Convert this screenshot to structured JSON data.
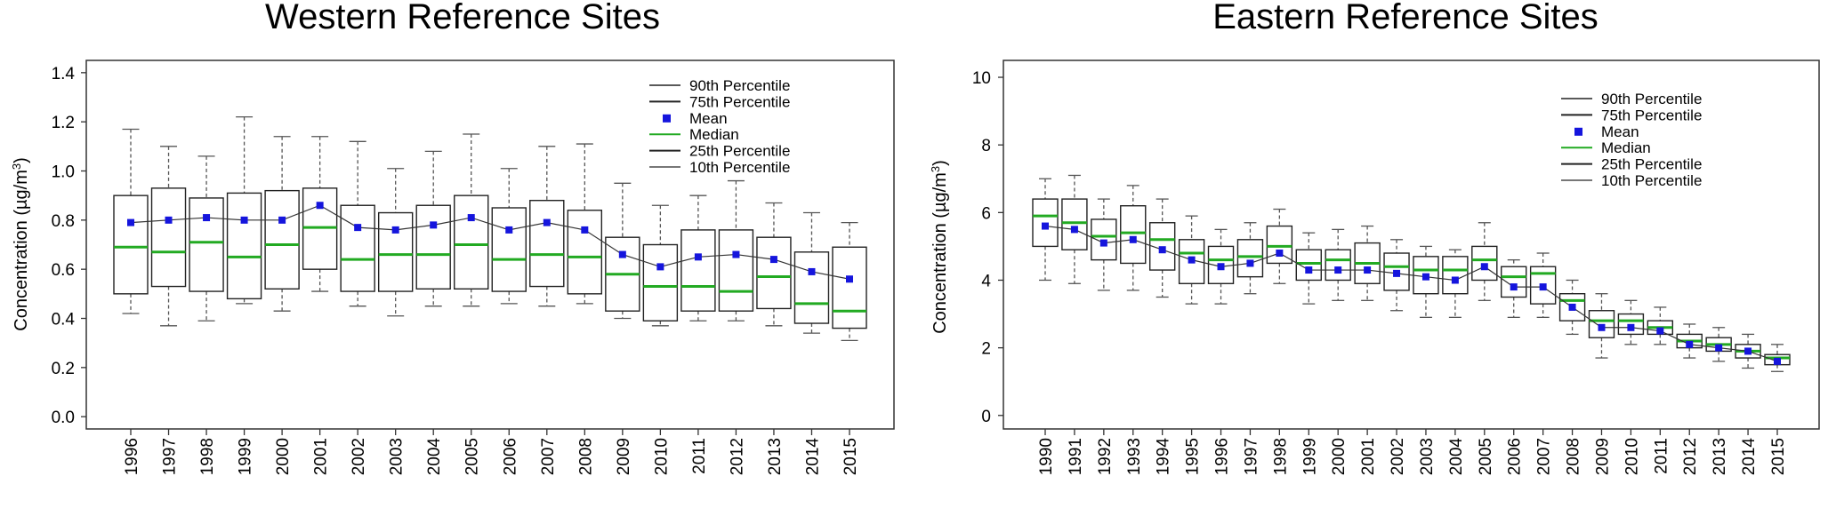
{
  "colors": {
    "box": "#222222",
    "whisker": "#555555",
    "median": "#22aa22",
    "mean": "#1515dd",
    "line": "#333333"
  },
  "chart_data": [
    {
      "type": "box",
      "title": "Western Reference Sites",
      "ylabel": "Concentration (µg/m³)",
      "ylim": [
        -0.05,
        1.45
      ],
      "yticks": [
        0.0,
        0.2,
        0.4,
        0.6,
        0.8,
        1.0,
        1.2,
        1.4
      ],
      "ytick_labels": [
        "0.0",
        "0.2",
        "0.4",
        "0.6",
        "0.8",
        "1.0",
        "1.2",
        "1.4"
      ],
      "legend": [
        "90th Percentile",
        "75th Percentile",
        "Mean",
        "Median",
        "25th Percentile",
        "10th Percentile"
      ],
      "categories": [
        "1996",
        "1997",
        "1998",
        "1999",
        "2000",
        "2001",
        "2002",
        "2003",
        "2004",
        "2005",
        "2006",
        "2007",
        "2008",
        "2009",
        "2010",
        "2011",
        "2012",
        "2013",
        "2014",
        "2015"
      ],
      "p10": [
        0.42,
        0.37,
        0.39,
        0.46,
        0.43,
        0.51,
        0.45,
        0.41,
        0.45,
        0.45,
        0.46,
        0.45,
        0.46,
        0.4,
        0.37,
        0.39,
        0.39,
        0.37,
        0.34,
        0.31
      ],
      "p25": [
        0.5,
        0.53,
        0.51,
        0.48,
        0.52,
        0.6,
        0.51,
        0.51,
        0.52,
        0.52,
        0.51,
        0.53,
        0.5,
        0.43,
        0.39,
        0.43,
        0.43,
        0.44,
        0.38,
        0.36
      ],
      "median": [
        0.69,
        0.67,
        0.71,
        0.65,
        0.7,
        0.77,
        0.64,
        0.66,
        0.66,
        0.7,
        0.64,
        0.66,
        0.65,
        0.58,
        0.53,
        0.53,
        0.51,
        0.57,
        0.46,
        0.43
      ],
      "mean": [
        0.79,
        0.8,
        0.81,
        0.8,
        0.8,
        0.86,
        0.77,
        0.76,
        0.78,
        0.81,
        0.76,
        0.79,
        0.76,
        0.66,
        0.61,
        0.65,
        0.66,
        0.64,
        0.59,
        0.56
      ],
      "p75": [
        0.9,
        0.93,
        0.89,
        0.91,
        0.92,
        0.93,
        0.86,
        0.83,
        0.86,
        0.9,
        0.85,
        0.88,
        0.84,
        0.73,
        0.7,
        0.76,
        0.76,
        0.73,
        0.67,
        0.69
      ],
      "p90": [
        1.17,
        1.1,
        1.06,
        1.22,
        1.14,
        1.14,
        1.12,
        1.01,
        1.08,
        1.15,
        1.01,
        1.1,
        1.11,
        0.95,
        0.86,
        0.9,
        0.96,
        0.87,
        0.83,
        0.79
      ]
    },
    {
      "type": "box",
      "title": "Eastern Reference Sites",
      "ylabel": "Concentration (µg/m³)",
      "ylim": [
        -0.4,
        10.5
      ],
      "yticks": [
        0,
        2,
        4,
        6,
        8,
        10
      ],
      "ytick_labels": [
        "0",
        "2",
        "4",
        "6",
        "8",
        "10"
      ],
      "legend": [
        "90th Percentile",
        "75th Percentile",
        "Mean",
        "Median",
        "25th Percentile",
        "10th Percentile"
      ],
      "categories": [
        "1990",
        "1991",
        "1992",
        "1993",
        "1994",
        "1995",
        "1996",
        "1997",
        "1998",
        "1999",
        "2000",
        "2001",
        "2002",
        "2003",
        "2004",
        "2005",
        "2006",
        "2007",
        "2008",
        "2009",
        "2010",
        "2011",
        "2012",
        "2013",
        "2014",
        "2015"
      ],
      "p10": [
        4.0,
        3.9,
        3.7,
        3.7,
        3.5,
        3.3,
        3.3,
        3.6,
        3.9,
        3.3,
        3.4,
        3.4,
        3.1,
        2.9,
        2.9,
        3.4,
        2.9,
        2.9,
        2.4,
        1.7,
        2.1,
        2.1,
        1.7,
        1.6,
        1.4,
        1.3
      ],
      "p25": [
        5.0,
        4.9,
        4.6,
        4.5,
        4.3,
        3.9,
        3.9,
        4.1,
        4.5,
        4.0,
        4.0,
        3.9,
        3.7,
        3.6,
        3.6,
        4.0,
        3.5,
        3.3,
        2.8,
        2.3,
        2.4,
        2.4,
        2.0,
        1.9,
        1.7,
        1.5
      ],
      "median": [
        5.9,
        5.7,
        5.3,
        5.4,
        5.2,
        4.8,
        4.6,
        4.7,
        5.0,
        4.5,
        4.6,
        4.5,
        4.4,
        4.3,
        4.3,
        4.6,
        4.1,
        4.2,
        3.4,
        2.8,
        2.8,
        2.6,
        2.2,
        2.1,
        1.9,
        1.7
      ],
      "mean": [
        5.6,
        5.5,
        5.1,
        5.2,
        4.9,
        4.6,
        4.4,
        4.5,
        4.8,
        4.3,
        4.3,
        4.3,
        4.2,
        4.1,
        4.0,
        4.4,
        3.8,
        3.8,
        3.2,
        2.6,
        2.6,
        2.5,
        2.1,
        2.0,
        1.9,
        1.6
      ],
      "p75": [
        6.4,
        6.4,
        5.8,
        6.2,
        5.7,
        5.2,
        5.0,
        5.2,
        5.6,
        4.9,
        4.9,
        5.1,
        4.8,
        4.7,
        4.7,
        5.0,
        4.4,
        4.4,
        3.6,
        3.1,
        3.0,
        2.8,
        2.4,
        2.3,
        2.1,
        1.8
      ],
      "p90": [
        7.0,
        7.1,
        6.4,
        6.8,
        6.4,
        5.9,
        5.5,
        5.7,
        6.1,
        5.4,
        5.5,
        5.6,
        5.2,
        5.0,
        4.9,
        5.7,
        4.6,
        4.8,
        4.0,
        3.6,
        3.4,
        3.2,
        2.7,
        2.6,
        2.4,
        2.1
      ]
    }
  ]
}
